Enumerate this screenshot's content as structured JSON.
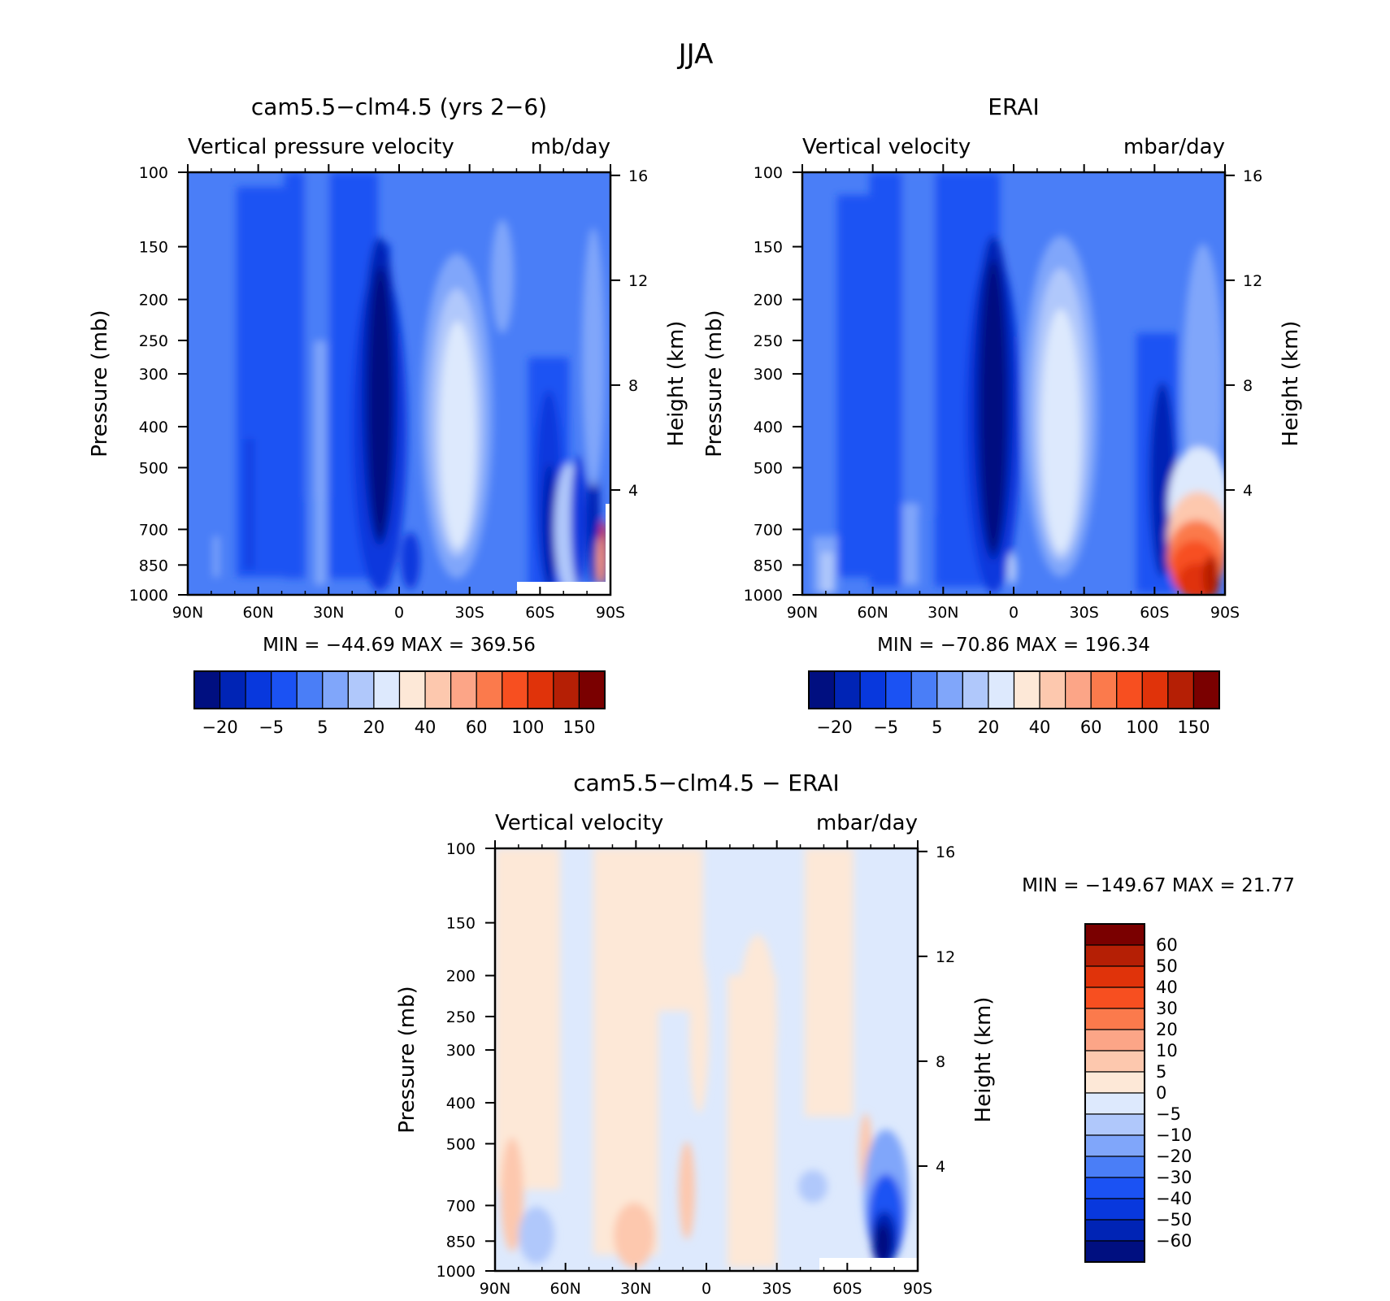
{
  "figure": {
    "title": "JJA"
  },
  "colors": {
    "abs_levels": [
      "#000f80",
      "#0024b5",
      "#0838dd",
      "#1b52f3",
      "#4a7ef7",
      "#80a6fa",
      "#b0c8fb",
      "#dde9fd",
      "#fde8d7",
      "#fdc8ae",
      "#fca587",
      "#fb7a4c",
      "#f74f20",
      "#e0330a",
      "#b51f05",
      "#7a0000"
    ],
    "diff_levels": [
      "#7a0000",
      "#b51f05",
      "#e0330a",
      "#f74f20",
      "#fb7a4c",
      "#fca587",
      "#fdc8ae",
      "#fde8d7",
      "#dde9fd",
      "#b0c8fb",
      "#80a6fa",
      "#4a7ef7",
      "#1b52f3",
      "#0838dd",
      "#0024b5",
      "#000f80"
    ]
  },
  "chart_data": [
    {
      "type": "heatmap",
      "title": "cam5.5−clm4.5 (yrs 2−6)",
      "subtitle_left": "Vertical pressure velocity",
      "subtitle_right": "mb/day",
      "ylabel": "Pressure (mb)",
      "y2label": "Height (km)",
      "x_ticks": [
        "90N",
        "60N",
        "30N",
        "0",
        "30S",
        "60S",
        "90S"
      ],
      "x_values": [
        90,
        60,
        30,
        0,
        -30,
        -60,
        -90
      ],
      "xlim": [
        90,
        -90
      ],
      "y_ticks": [
        "100",
        "150",
        "200",
        "250",
        "300",
        "400",
        "500",
        "700",
        "850",
        "1000"
      ],
      "y_values": [
        100,
        150,
        200,
        250,
        300,
        400,
        500,
        700,
        850,
        1000
      ],
      "ylim": [
        1000,
        100
      ],
      "y_scale": "log",
      "y2_ticks": [
        "16",
        "12",
        "8",
        "4"
      ],
      "y2_values": [
        16,
        12,
        8,
        4
      ],
      "stats": "MIN = −44.69   MAX = 369.56",
      "colorbar": {
        "orientation": "horizontal",
        "labels": [
          "−20",
          "−5",
          "5",
          "20",
          "40",
          "60",
          "100",
          "150"
        ]
      }
    },
    {
      "type": "heatmap",
      "title": "ERAI",
      "subtitle_left": "Vertical velocity",
      "subtitle_right": "mbar/day",
      "ylabel": "Pressure (mb)",
      "y2label": "Height (km)",
      "x_ticks": [
        "90N",
        "60N",
        "30N",
        "0",
        "30S",
        "60S",
        "90S"
      ],
      "x_values": [
        90,
        60,
        30,
        0,
        -30,
        -60,
        -90
      ],
      "xlim": [
        90,
        -90
      ],
      "y_ticks": [
        "100",
        "150",
        "200",
        "250",
        "300",
        "400",
        "500",
        "700",
        "850",
        "1000"
      ],
      "y_values": [
        100,
        150,
        200,
        250,
        300,
        400,
        500,
        700,
        850,
        1000
      ],
      "ylim": [
        1000,
        100
      ],
      "y_scale": "log",
      "y2_ticks": [
        "16",
        "12",
        "8",
        "4"
      ],
      "y2_values": [
        16,
        12,
        8,
        4
      ],
      "stats": "MIN = −70.86   MAX = 196.34",
      "colorbar": {
        "orientation": "horizontal",
        "labels": [
          "−20",
          "−5",
          "5",
          "20",
          "40",
          "60",
          "100",
          "150"
        ]
      }
    },
    {
      "type": "heatmap",
      "title": "cam5.5−clm4.5 − ERAI",
      "subtitle_left": "Vertical velocity",
      "subtitle_right": "mbar/day",
      "ylabel": "Pressure (mb)",
      "y2label": "Height (km)",
      "x_ticks": [
        "90N",
        "60N",
        "30N",
        "0",
        "30S",
        "60S",
        "90S"
      ],
      "x_values": [
        90,
        60,
        30,
        0,
        -30,
        -60,
        -90
      ],
      "xlim": [
        90,
        -90
      ],
      "y_ticks": [
        "100",
        "150",
        "200",
        "250",
        "300",
        "400",
        "500",
        "700",
        "850",
        "1000"
      ],
      "y_values": [
        100,
        150,
        200,
        250,
        300,
        400,
        500,
        700,
        850,
        1000
      ],
      "ylim": [
        1000,
        100
      ],
      "y_scale": "log",
      "y2_ticks": [
        "16",
        "12",
        "8",
        "4"
      ],
      "y2_values": [
        16,
        12,
        8,
        4
      ],
      "stats": "MIN = −149.67   MAX =   21.77",
      "colorbar": {
        "orientation": "vertical",
        "labels": [
          "60",
          "50",
          "40",
          "30",
          "20",
          "10",
          "5",
          "0",
          "−5",
          "−10",
          "−20",
          "−30",
          "−40",
          "−50",
          "−60"
        ]
      }
    }
  ]
}
